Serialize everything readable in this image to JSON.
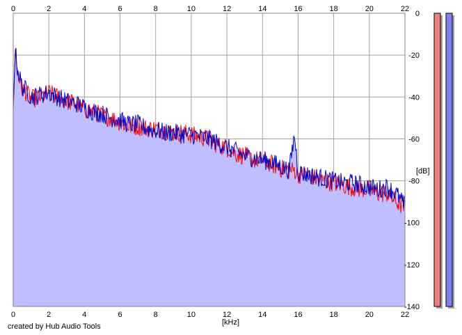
{
  "colors": {
    "fill": "#bfbfff",
    "left_channel": "#ff0000",
    "right_channel": "#0000c8",
    "grid": "#a0a0a0",
    "left_meter": "#f08080",
    "right_meter": "#8080f0"
  },
  "footer": {
    "text": "created by Hub Audio Tools"
  },
  "chart_data": {
    "type": "line",
    "title": "",
    "xlabel": "[kHz]",
    "ylabel": "[dB]",
    "xlim": [
      0,
      22
    ],
    "ylim": [
      -140,
      0
    ],
    "grid": true,
    "x_ticks": [
      "0",
      "2",
      "4",
      "6",
      "8",
      "10",
      "12",
      "14",
      "16",
      "18",
      "20",
      "22"
    ],
    "y_ticks": [
      "0",
      "-20",
      "-40",
      "-60",
      "-80",
      "-100",
      "-120",
      "-140"
    ],
    "x": [
      0,
      0.1,
      0.25,
      0.5,
      0.75,
      1,
      1.5,
      2,
      2.5,
      3,
      3.5,
      4,
      4.5,
      5,
      5.5,
      6,
      6.5,
      7,
      7.5,
      8,
      8.5,
      9,
      9.5,
      10,
      10.5,
      11,
      11.5,
      12,
      12.5,
      13,
      13.5,
      14,
      14.5,
      15,
      15.5,
      15.8,
      16,
      16.5,
      17,
      17.5,
      18,
      18.5,
      19,
      19.5,
      20,
      20.5,
      21,
      21.5,
      22
    ],
    "series": [
      {
        "values": [
          -48,
          -17,
          -28,
          -36,
          -38,
          -41,
          -40,
          -38,
          -40,
          -42,
          -43,
          -46,
          -47,
          -49,
          -50,
          -52,
          -54,
          -54,
          -55,
          -55,
          -56,
          -57,
          -57,
          -58,
          -59,
          -60,
          -63,
          -64,
          -67,
          -68,
          -70,
          -70,
          -72,
          -74,
          -75,
          -75,
          -77,
          -77,
          -79,
          -80,
          -81,
          -82,
          -83,
          -84,
          -84,
          -86,
          -86,
          -90,
          -93
        ]
      },
      {
        "values": [
          -45,
          -17,
          -27,
          -35,
          -37,
          -40,
          -39,
          -38,
          -40,
          -42,
          -43,
          -45,
          -47,
          -48,
          -50,
          -51,
          -53,
          -53,
          -55,
          -56,
          -57,
          -57,
          -58,
          -58,
          -59,
          -60,
          -62,
          -64,
          -66,
          -68,
          -69,
          -70,
          -71,
          -73,
          -75,
          -58,
          -76,
          -77,
          -78,
          -79,
          -80,
          -81,
          -81,
          -82,
          -83,
          -84,
          -83,
          -86,
          -92
        ]
      }
    ],
    "meters": {
      "left": 0,
      "right": 0
    }
  }
}
